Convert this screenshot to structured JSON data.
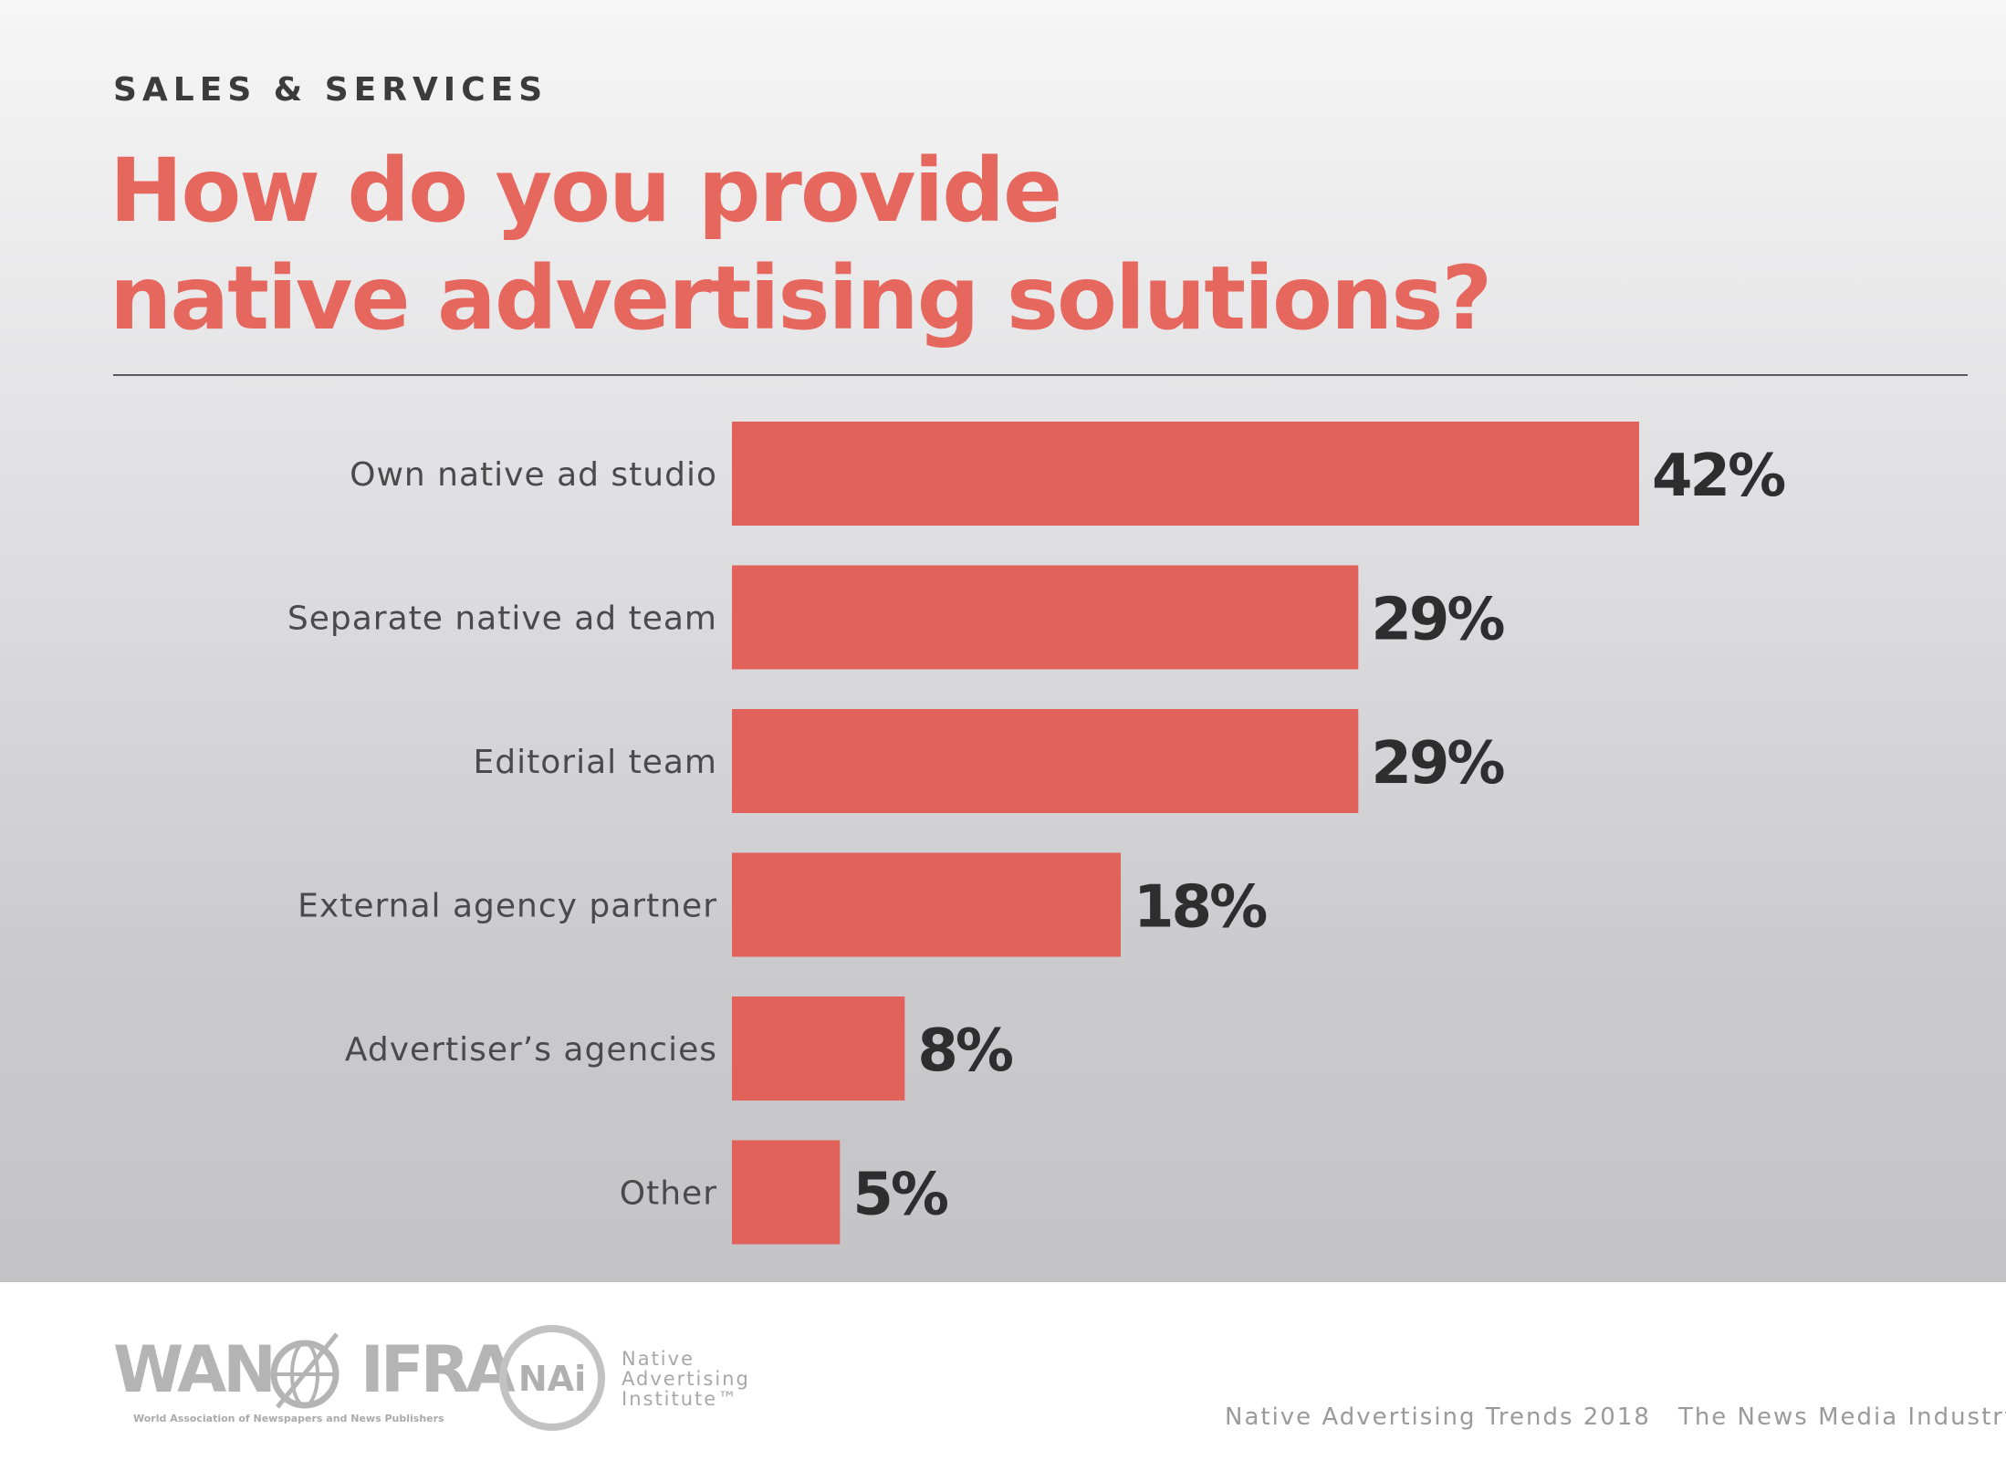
{
  "section": "SALES & SERVICES",
  "title_lines": [
    "How do you provide",
    "native advertising solutions?"
  ],
  "colors": {
    "accent": "#e5675e",
    "bar": "#e0625b",
    "value_text": "#2e2e2e",
    "label_text": "#4a4a4a"
  },
  "chart_data": {
    "type": "bar",
    "orientation": "horizontal",
    "title": "How do you provide native advertising solutions?",
    "categories": [
      "Own native ad studio",
      "Separate native ad team",
      "Editorial team",
      "External agency partner",
      "Advertiser’s agencies",
      "Other"
    ],
    "values": [
      42,
      29,
      29,
      18,
      8,
      5
    ],
    "value_labels": [
      "42%",
      "29%",
      "29%",
      "18%",
      "8%",
      "5%"
    ],
    "unit": "%",
    "xlim": [
      0,
      42
    ],
    "grid": false,
    "legend": "none"
  },
  "footer": {
    "credits": [
      "Native Advertising Trends 2018",
      "The News Media Industry"
    ],
    "logos": {
      "wan_ifra": {
        "name_left": "WAN",
        "name_right": "IFRA",
        "tagline": "World Association of Newspapers and News Publishers"
      },
      "nai": {
        "mark": "NAi",
        "lines": [
          "Native",
          "Advertising",
          "Institute™"
        ]
      }
    }
  }
}
